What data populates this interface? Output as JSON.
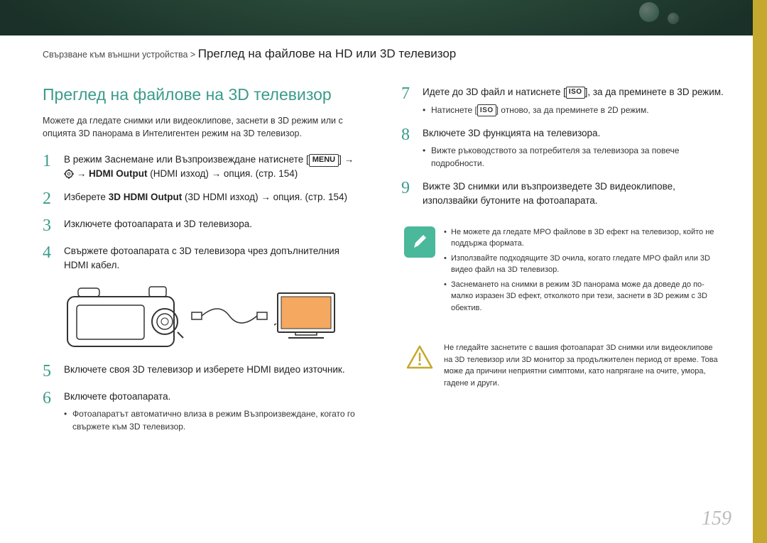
{
  "breadcrumb": {
    "category": "Свързване към външни устройства > ",
    "title": "Преглед на файлове на HD или 3D телевизор"
  },
  "section_title": "Преглед на файлове на 3D телевизор",
  "intro": "Можете да гледате снимки или видеоклипове, заснети в 3D режим или с опцията 3D панорама в Интелигентен режим на 3D телевизор.",
  "steps_left": [
    {
      "num": "1",
      "text_parts": [
        "В режим Заснемане или Възпроизвеждане натиснете [",
        "MENU",
        "] → ",
        "GEAR",
        " → ",
        "HDMI Output",
        " (HDMI изход) → опция. (стр. 154)"
      ]
    },
    {
      "num": "2",
      "text_parts": [
        "Изберете ",
        "3D HDMI Output",
        " (3D HDMI изход) → опция. (стр. 154)"
      ]
    },
    {
      "num": "3",
      "text": "Изключете фотоапарата и 3D телевизора."
    },
    {
      "num": "4",
      "text": "Свържете фотоапарата с 3D телевизора чрез допълнителния HDMI кабел."
    },
    {
      "num": "5",
      "text": "Включете своя 3D телевизор и изберете HDMI видео източник."
    },
    {
      "num": "6",
      "text": "Включете фотоапарата.",
      "sub": [
        "Фотоапаратът автоматично влиза в режим Възпроизвеждане, когато го свържете към 3D телевизор."
      ]
    }
  ],
  "steps_right": [
    {
      "num": "7",
      "text_parts": [
        "Идете до 3D файл и натиснете [",
        "ISO",
        "], за да преминете в 3D режим."
      ],
      "sub_parts": [
        [
          "Натиснете [",
          "ISO",
          "] отново, за да преминете в 2D режим."
        ]
      ]
    },
    {
      "num": "8",
      "text": "Включете 3D функцията на телевизора.",
      "sub": [
        "Вижте ръководството за потребителя за телевизора за повече подробности."
      ]
    },
    {
      "num": "9",
      "text": "Вижте 3D снимки или възпроизведете 3D видеоклипове, използвайки бутоните на фотоапарата."
    }
  ],
  "note_pen": [
    "Не можете да гледате MPO файлове в 3D ефект на телевизор, който не поддържа формата.",
    "Използвайте подходящите 3D очила, когато гледате MPO файл или 3D видео файл на 3D телевизор.",
    "Заснемането на снимки в режим 3D панорама може да доведе до по-малко изразен 3D ефект, отколкото при тези, заснети в 3D режим с 3D обектив."
  ],
  "note_warn": "Не гледайте заснетите с вашия фотоапарат 3D снимки или видеоклипове на 3D телевизор или 3D монитор за продължителен период от време. Това може да причини неприятни симптоми, като напрягане на очите, умора, гадене и други.",
  "page_number": "159",
  "colors": {
    "accent": "#3a9b8a",
    "pen_bg": "#4ab89a",
    "side_tab": "#c5a82e",
    "page_num": "#bbbbbb"
  }
}
